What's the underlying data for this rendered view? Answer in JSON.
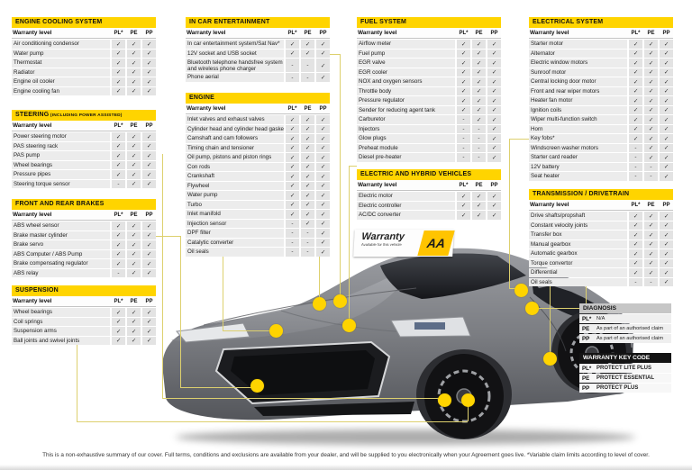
{
  "page": {
    "warranty_level_label": "Warranty level",
    "level_codes": [
      "PL*",
      "PE",
      "PP"
    ],
    "footer": "This is a non-exhaustive summary of our cover. Full terms, conditions and exclusions are available from your dealer, and will be supplied to you electronically when your Agreement goes live. *Variable claim  limits according to level of cover."
  },
  "colors": {
    "accent_yellow": "#ffd400",
    "diagnosis_gray": "#c6c6c6",
    "keycode_black": "#141414",
    "line_yellow": "#ddd06e"
  },
  "sign": {
    "title": "Warranty",
    "subtitle": "Available for this vehicle",
    "logo": "AA"
  },
  "tables": [
    {
      "id": "engine_cooling",
      "title": "ENGINE COOLING SYSTEM",
      "suffix": "",
      "rows": [
        {
          "label": "Air conditioning condensor",
          "marks": [
            "c",
            "c",
            "c"
          ]
        },
        {
          "label": "Water pump",
          "marks": [
            "c",
            "c",
            "c"
          ]
        },
        {
          "label": "Thermostat",
          "marks": [
            "c",
            "c",
            "c"
          ]
        },
        {
          "label": "Radiator",
          "marks": [
            "c",
            "c",
            "c"
          ]
        },
        {
          "label": "Engine oil cooler",
          "marks": [
            "c",
            "c",
            "c"
          ]
        },
        {
          "label": "Engine cooling fan",
          "marks": [
            "c",
            "c",
            "c"
          ]
        }
      ]
    },
    {
      "id": "steering",
      "title": "STEERING",
      "suffix": " (INCLUDING POWER ASSISTED)",
      "rows": [
        {
          "label": "Power steering motor",
          "marks": [
            "c",
            "c",
            "c"
          ]
        },
        {
          "label": "PAS steering rack",
          "marks": [
            "c",
            "c",
            "c"
          ]
        },
        {
          "label": "PAS pump",
          "marks": [
            "c",
            "c",
            "c"
          ]
        },
        {
          "label": "Wheel bearings",
          "marks": [
            "c",
            "c",
            "c"
          ]
        },
        {
          "label": "Pressure pipes",
          "marks": [
            "c",
            "c",
            "c"
          ]
        },
        {
          "label": "Steering torque sensor",
          "marks": [
            "d",
            "c",
            "c"
          ]
        }
      ]
    },
    {
      "id": "brakes",
      "title": "FRONT AND REAR BRAKES",
      "suffix": "",
      "rows": [
        {
          "label": "ABS wheel sensor",
          "marks": [
            "c",
            "c",
            "c"
          ]
        },
        {
          "label": "Brake master cylinder",
          "marks": [
            "c",
            "c",
            "c"
          ]
        },
        {
          "label": "Brake servo",
          "marks": [
            "c",
            "c",
            "c"
          ]
        },
        {
          "label": "ABS Computer / ABS Pump",
          "marks": [
            "c",
            "c",
            "c"
          ]
        },
        {
          "label": "Brake compensating regulator",
          "marks": [
            "c",
            "c",
            "c"
          ]
        },
        {
          "label": "ABS relay",
          "marks": [
            "d",
            "c",
            "c"
          ]
        }
      ]
    },
    {
      "id": "suspension",
      "title": "SUSPENSION",
      "suffix": "",
      "rows": [
        {
          "label": "Wheel bearings",
          "marks": [
            "c",
            "c",
            "c"
          ]
        },
        {
          "label": "Coil springs",
          "marks": [
            "c",
            "c",
            "c"
          ]
        },
        {
          "label": "Suspension arms",
          "marks": [
            "c",
            "c",
            "c"
          ]
        },
        {
          "label": "Ball joints and swivel joints",
          "marks": [
            "c",
            "c",
            "c"
          ]
        }
      ]
    },
    {
      "id": "ice",
      "title": "IN CAR ENTERTAINMENT",
      "suffix": "",
      "rows": [
        {
          "label": "In car entertainment system/Sat Nav*",
          "marks": [
            "c",
            "c",
            "c"
          ]
        },
        {
          "label": "12V socket and USB socket",
          "marks": [
            "c",
            "c",
            "c"
          ]
        },
        {
          "label": "Bluetooth telephone handsfree system and wireless phone charger",
          "marks": [
            "d",
            "d",
            "c"
          ],
          "tall": true
        },
        {
          "label": "Phone aerial",
          "marks": [
            "d",
            "d",
            "c"
          ]
        }
      ]
    },
    {
      "id": "engine",
      "title": "ENGINE",
      "suffix": "",
      "rows": [
        {
          "label": "Inlet valves and exhaust valves",
          "marks": [
            "c",
            "c",
            "c"
          ]
        },
        {
          "label": "Cylinder head and cylinder head gasket",
          "marks": [
            "c",
            "c",
            "c"
          ]
        },
        {
          "label": "Camshaft and cam followers",
          "marks": [
            "c",
            "c",
            "c"
          ]
        },
        {
          "label": "Timing chain and tensioner",
          "marks": [
            "c",
            "c",
            "c"
          ]
        },
        {
          "label": "Oil pump, pistons and piston rings",
          "marks": [
            "c",
            "c",
            "c"
          ]
        },
        {
          "label": "Con rods",
          "marks": [
            "c",
            "c",
            "c"
          ]
        },
        {
          "label": "Crankshaft",
          "marks": [
            "c",
            "c",
            "c"
          ]
        },
        {
          "label": "Flywheel",
          "marks": [
            "c",
            "c",
            "c"
          ]
        },
        {
          "label": "Water pump",
          "marks": [
            "c",
            "c",
            "c"
          ]
        },
        {
          "label": "Turbo",
          "marks": [
            "c",
            "c",
            "c"
          ]
        },
        {
          "label": "Inlet manifold",
          "marks": [
            "c",
            "c",
            "c"
          ]
        },
        {
          "label": "Injection sensor",
          "marks": [
            "d",
            "c",
            "c"
          ]
        },
        {
          "label": "DPF filter",
          "marks": [
            "d",
            "d",
            "c"
          ]
        },
        {
          "label": "Catalytic converter",
          "marks": [
            "d",
            "d",
            "c"
          ]
        },
        {
          "label": "Oil seals",
          "marks": [
            "d",
            "d",
            "c"
          ]
        }
      ]
    },
    {
      "id": "fuel",
      "title": "FUEL SYSTEM",
      "suffix": "",
      "rows": [
        {
          "label": "Airflow meter",
          "marks": [
            "c",
            "c",
            "c"
          ]
        },
        {
          "label": "Fuel pump",
          "marks": [
            "c",
            "c",
            "c"
          ]
        },
        {
          "label": "EGR valve",
          "marks": [
            "c",
            "c",
            "c"
          ]
        },
        {
          "label": "EGR cooler",
          "marks": [
            "c",
            "c",
            "c"
          ]
        },
        {
          "label": "NOX and oxygen sensors",
          "marks": [
            "c",
            "c",
            "c"
          ]
        },
        {
          "label": "Throttle body",
          "marks": [
            "c",
            "c",
            "c"
          ]
        },
        {
          "label": "Pressure regulator",
          "marks": [
            "c",
            "c",
            "c"
          ]
        },
        {
          "label": "Sender for reducing agent tank",
          "marks": [
            "c",
            "c",
            "c"
          ]
        },
        {
          "label": "Carburetor",
          "marks": [
            "d",
            "c",
            "c"
          ]
        },
        {
          "label": "Injectors",
          "marks": [
            "d",
            "d",
            "c"
          ]
        },
        {
          "label": "Glow plugs",
          "marks": [
            "d",
            "d",
            "c"
          ]
        },
        {
          "label": "Preheat module",
          "marks": [
            "d",
            "d",
            "c"
          ]
        },
        {
          "label": "Diesel pre-heater",
          "marks": [
            "d",
            "d",
            "c"
          ]
        }
      ]
    },
    {
      "id": "ehv",
      "title": "ELECTRIC AND HYBRID VEHICLES",
      "suffix": "",
      "rows": [
        {
          "label": "Electric motor",
          "marks": [
            "c",
            "c",
            "c"
          ]
        },
        {
          "label": "Electric controller",
          "marks": [
            "c",
            "c",
            "c"
          ]
        },
        {
          "label": "AC/DC converter",
          "marks": [
            "c",
            "c",
            "c"
          ]
        }
      ]
    },
    {
      "id": "electrical",
      "title": "ELECTRICAL SYSTEM",
      "suffix": "",
      "rows": [
        {
          "label": "Starter motor",
          "marks": [
            "c",
            "c",
            "c"
          ]
        },
        {
          "label": "Alternator",
          "marks": [
            "c",
            "c",
            "c"
          ]
        },
        {
          "label": "Electric window motors",
          "marks": [
            "c",
            "c",
            "c"
          ]
        },
        {
          "label": "Sunroof motor",
          "marks": [
            "c",
            "c",
            "c"
          ]
        },
        {
          "label": "Central locking door motor",
          "marks": [
            "c",
            "c",
            "c"
          ]
        },
        {
          "label": "Front and rear wiper motors",
          "marks": [
            "c",
            "c",
            "c"
          ]
        },
        {
          "label": "Heater fan motor",
          "marks": [
            "c",
            "c",
            "c"
          ]
        },
        {
          "label": "Ignition coils",
          "marks": [
            "c",
            "c",
            "c"
          ]
        },
        {
          "label": "Wiper multi-function switch",
          "marks": [
            "c",
            "c",
            "c"
          ]
        },
        {
          "label": "Horn",
          "marks": [
            "c",
            "c",
            "c"
          ]
        },
        {
          "label": "Key fobs*",
          "marks": [
            "c",
            "c",
            "c"
          ]
        },
        {
          "label": "Windscreen washer motors",
          "marks": [
            "d",
            "c",
            "c"
          ]
        },
        {
          "label": "Starter card reader",
          "marks": [
            "d",
            "c",
            "c"
          ]
        },
        {
          "label": "12V battery",
          "marks": [
            "d",
            "d",
            "c"
          ]
        },
        {
          "label": "Seat heater",
          "marks": [
            "d",
            "d",
            "c"
          ]
        }
      ]
    },
    {
      "id": "transmission",
      "title": "TRANSMISSION / DRIVETRAIN",
      "suffix": "",
      "rows": [
        {
          "label": "Drive shafts/propshaft",
          "marks": [
            "c",
            "c",
            "c"
          ]
        },
        {
          "label": "Constant velocity joints",
          "marks": [
            "c",
            "c",
            "c"
          ]
        },
        {
          "label": "Transfer box",
          "marks": [
            "c",
            "c",
            "c"
          ]
        },
        {
          "label": "Manual gearbox",
          "marks": [
            "c",
            "c",
            "c"
          ]
        },
        {
          "label": "Automatic gearbox",
          "marks": [
            "c",
            "c",
            "c"
          ]
        },
        {
          "label": "Torque convertor",
          "marks": [
            "c",
            "c",
            "c"
          ]
        },
        {
          "label": "Differential",
          "marks": [
            "c",
            "c",
            "c"
          ]
        },
        {
          "label": "Oil seals",
          "marks": [
            "d",
            "d",
            "c"
          ]
        }
      ]
    }
  ],
  "diagnosis": {
    "title": "DIAGNOSIS",
    "rows": [
      {
        "code": "PL*",
        "desc": "N/A"
      },
      {
        "code": "PE",
        "desc": "As part of an authorised claim"
      },
      {
        "code": "PP",
        "desc": "As part of an authorised claim"
      }
    ]
  },
  "key_code": {
    "title": "WARRANTY KEY CODE",
    "rows": [
      {
        "code": "PL*",
        "desc": "PROTECT LITE PLUS"
      },
      {
        "code": "PE",
        "desc": "PROTECT ESSENTIAL"
      },
      {
        "code": "PP",
        "desc": "PROTECT PLUS"
      }
    ]
  }
}
